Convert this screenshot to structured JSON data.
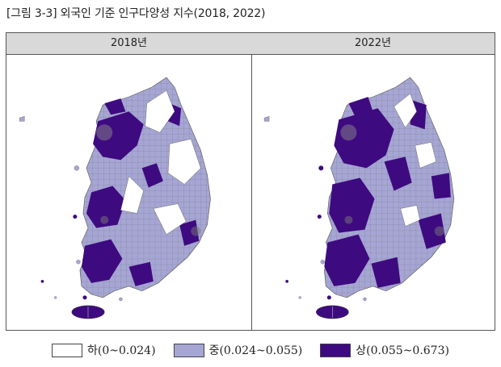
{
  "figure": {
    "title": "[그림 3-3] 외국인 기준 인구다양성 지수(2018, 2022)"
  },
  "panels": [
    {
      "label": "2018년"
    },
    {
      "label": "2022년"
    }
  ],
  "legend": [
    {
      "label": "하(0~0.024)",
      "color": "#ffffff"
    },
    {
      "label": "중(0.024~0.055)",
      "color": "#a6a6d4"
    },
    {
      "label": "상(0.055~0.673)",
      "color": "#3e0a80"
    }
  ],
  "colors": {
    "low": "#ffffff",
    "mid": "#a6a6d4",
    "high": "#3e0a80",
    "boundary": "#555555",
    "header_bg": "#d9d9d9"
  }
}
